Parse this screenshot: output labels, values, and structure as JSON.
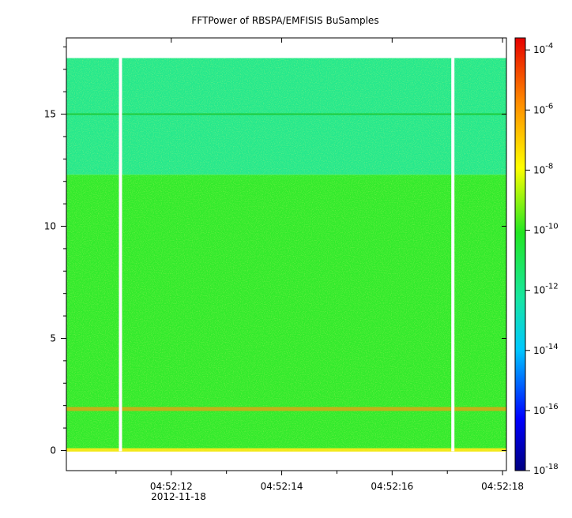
{
  "chart_data": {
    "type": "heatmap",
    "title": "FFTPower of RBSPA/EMFISIS  BuSamples",
    "xlabel": "",
    "ylabel": "",
    "x_tick_labels": [
      "04:52:12",
      "04:52:14",
      "04:52:16",
      "04:52:18"
    ],
    "x_ticks_seconds": [
      12,
      14,
      16,
      18
    ],
    "x_date_label": "2012-11-18",
    "xlim_seconds": [
      10.1,
      18.07
    ],
    "ylim": [
      -0.9,
      18.4
    ],
    "y_ticks": [
      0,
      5,
      10,
      15
    ],
    "y_tick_labels": [
      "0",
      "5",
      "10",
      "15"
    ],
    "y_data_top": 17.5,
    "colorbar": {
      "scale": "log",
      "range_exponent": [
        -18,
        -3.6
      ],
      "tick_exponents": [
        -4,
        -6,
        -8,
        -10,
        -12,
        -14,
        -16,
        -18
      ],
      "tick_labels": [
        "10-4",
        "10-6",
        "10-8",
        "10-10",
        "10-12",
        "10-14",
        "10-16",
        "10-18"
      ]
    },
    "bands": [
      {
        "y_range": [
          12.3,
          17.5
        ],
        "level": "1e-12",
        "color": "#25e88c"
      },
      {
        "y_range": [
          0.0,
          12.3
        ],
        "level": "1e-10",
        "color": "#32ea2c"
      },
      {
        "y_range": [
          -0.05,
          0.1
        ],
        "level": "1e-8",
        "color": "#f2e817"
      }
    ],
    "features": [
      {
        "kind": "narrowband",
        "y": 1.85,
        "level": "1e-7",
        "color": "#e6a214"
      },
      {
        "kind": "line",
        "y": 15.0,
        "level": "1e-11",
        "color": "#1ec834"
      }
    ],
    "gaps_seconds": [
      11.08,
      17.1
    ]
  }
}
